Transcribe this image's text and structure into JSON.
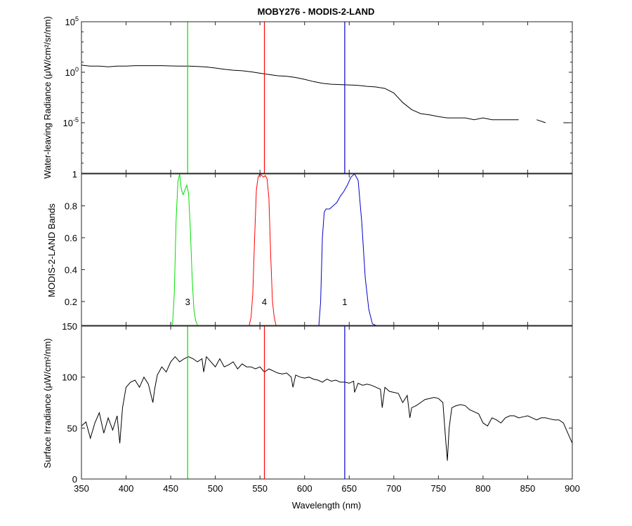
{
  "chart_data": [
    {
      "type": "line",
      "title": "MOBY276 - MODIS-2-LAND",
      "ylabel": "Water-leaving Radiance (μW/cm²/sr/nm)",
      "yscale": "log",
      "ylim": [
        1e-10,
        100000
      ],
      "xlim": [
        350,
        900
      ],
      "y_ticks": [
        {
          "value": 100000,
          "label": "10",
          "exp": "5"
        },
        {
          "value": 1,
          "label": "10",
          "exp": "0"
        },
        {
          "value": 1e-05,
          "label": "10",
          "exp": "-5"
        }
      ],
      "band_markers": [
        {
          "band": "3",
          "wavelength": 469,
          "color": "#00e000"
        },
        {
          "band": "4",
          "wavelength": 555,
          "color": "#ff0000"
        },
        {
          "band": "1",
          "wavelength": 645,
          "color": "#0000cc"
        }
      ],
      "series": [
        {
          "color": "#000000",
          "x": [
            350,
            360,
            370,
            380,
            390,
            400,
            410,
            420,
            430,
            440,
            450,
            460,
            470,
            480,
            490,
            500,
            510,
            520,
            530,
            540,
            550,
            560,
            570,
            580,
            590,
            600,
            610,
            620,
            630,
            640,
            650,
            660,
            670,
            680,
            690,
            700,
            710,
            720,
            730,
            740,
            750,
            760,
            770,
            780,
            790,
            800,
            810,
            820,
            830,
            840,
            850,
            860,
            870,
            880,
            890,
            900
          ],
          "y": [
            5,
            4,
            4,
            3.5,
            4,
            4,
            4.5,
            4.5,
            4.5,
            4.5,
            4.2,
            4,
            4,
            3.7,
            3.3,
            2.6,
            2,
            1.6,
            1.4,
            1.1,
            0.8,
            0.6,
            0.45,
            0.4,
            0.3,
            0.2,
            0.12,
            0.08,
            0.065,
            0.06,
            0.055,
            0.05,
            0.04,
            0.035,
            0.025,
            0.009,
            0.001,
            0.0002,
            8e-05,
            6e-05,
            4e-05,
            3e-05,
            3e-05,
            3e-05,
            2e-05,
            3e-05,
            2e-05,
            2e-05,
            2e-05,
            2e-05,
            null,
            2e-05,
            1e-05,
            null,
            1e-05,
            1e-05
          ]
        }
      ]
    },
    {
      "type": "line",
      "ylabel": "MODIS-2-LAND Bands",
      "ylim": [
        0.05,
        1
      ],
      "xlim": [
        350,
        900
      ],
      "y_ticks": [
        0.2,
        0.4,
        0.6,
        0.8,
        1
      ],
      "series": [
        {
          "color": "#00e000",
          "x": [
            452,
            454,
            456,
            458,
            460,
            462,
            464,
            466,
            468,
            470,
            472,
            474,
            476,
            478,
            480
          ],
          "y": [
            0.05,
            0.25,
            0.7,
            0.95,
            1.0,
            0.9,
            0.87,
            0.9,
            0.93,
            0.88,
            0.65,
            0.35,
            0.15,
            0.08,
            0.05
          ]
        },
        {
          "color": "#ff0000",
          "x": [
            538,
            540,
            542,
            544,
            546,
            548,
            550,
            552,
            554,
            556,
            558,
            560,
            562,
            564,
            566,
            568
          ],
          "y": [
            0.05,
            0.1,
            0.25,
            0.6,
            0.9,
            0.98,
            1.0,
            0.99,
            0.98,
            0.99,
            0.97,
            0.85,
            0.5,
            0.2,
            0.1,
            0.05
          ]
        },
        {
          "color": "#0000cc",
          "x": [
            616,
            618,
            620,
            622,
            624,
            628,
            632,
            636,
            640,
            644,
            648,
            652,
            656,
            660,
            664,
            668,
            672,
            676,
            680
          ],
          "y": [
            0.05,
            0.2,
            0.6,
            0.76,
            0.78,
            0.78,
            0.8,
            0.82,
            0.86,
            0.89,
            0.93,
            0.98,
            1.0,
            0.96,
            0.7,
            0.35,
            0.15,
            0.06,
            0.05
          ]
        }
      ],
      "band_labels": [
        {
          "text": "3",
          "x": 469,
          "y": 0.2
        },
        {
          "text": "4",
          "x": 555,
          "y": 0.2
        },
        {
          "text": "1",
          "x": 645,
          "y": 0.2
        }
      ]
    },
    {
      "type": "line",
      "xlabel": "Wavelength (nm)",
      "ylabel": "Surface Irradiance (μW/cm²/nm)",
      "ylim": [
        0,
        150
      ],
      "xlim": [
        350,
        900
      ],
      "x_ticks": [
        350,
        400,
        450,
        500,
        550,
        600,
        650,
        700,
        750,
        800,
        850,
        900
      ],
      "y_ticks": [
        0,
        50,
        100,
        150
      ],
      "series": [
        {
          "color": "#000000",
          "x": [
            350,
            355,
            360,
            365,
            370,
            375,
            380,
            385,
            390,
            393,
            396,
            400,
            405,
            410,
            415,
            420,
            425,
            430,
            432,
            435,
            440,
            445,
            450,
            455,
            460,
            465,
            470,
            475,
            480,
            485,
            487,
            490,
            495,
            500,
            505,
            510,
            515,
            520,
            525,
            530,
            535,
            540,
            545,
            550,
            555,
            560,
            565,
            570,
            575,
            580,
            585,
            587,
            590,
            595,
            600,
            605,
            610,
            615,
            620,
            625,
            630,
            635,
            640,
            645,
            650,
            655,
            656,
            660,
            665,
            670,
            675,
            680,
            685,
            687,
            690,
            695,
            700,
            705,
            710,
            715,
            718,
            720,
            725,
            730,
            735,
            740,
            745,
            750,
            755,
            758,
            760,
            762,
            765,
            770,
            775,
            780,
            785,
            790,
            795,
            800,
            805,
            810,
            815,
            820,
            825,
            830,
            835,
            840,
            845,
            850,
            855,
            860,
            865,
            870,
            875,
            880,
            885,
            890,
            895,
            900
          ],
          "y": [
            52,
            56,
            40,
            55,
            65,
            45,
            60,
            48,
            62,
            35,
            70,
            90,
            95,
            97,
            90,
            100,
            93,
            75,
            88,
            102,
            110,
            105,
            115,
            120,
            115,
            118,
            120,
            118,
            115,
            118,
            105,
            120,
            115,
            110,
            118,
            110,
            112,
            115,
            108,
            113,
            110,
            110,
            108,
            110,
            105,
            108,
            106,
            104,
            103,
            104,
            100,
            90,
            102,
            100,
            99,
            100,
            98,
            97,
            95,
            98,
            96,
            97,
            95,
            95,
            94,
            96,
            85,
            94,
            92,
            93,
            92,
            90,
            88,
            70,
            90,
            86,
            85,
            84,
            75,
            82,
            60,
            70,
            72,
            75,
            78,
            79,
            80,
            79,
            75,
            40,
            18,
            50,
            70,
            72,
            73,
            72,
            68,
            66,
            64,
            55,
            52,
            60,
            58,
            55,
            60,
            62,
            62,
            60,
            61,
            62,
            60,
            58,
            60,
            60,
            59,
            58,
            58,
            55,
            45,
            35
          ]
        }
      ]
    }
  ]
}
